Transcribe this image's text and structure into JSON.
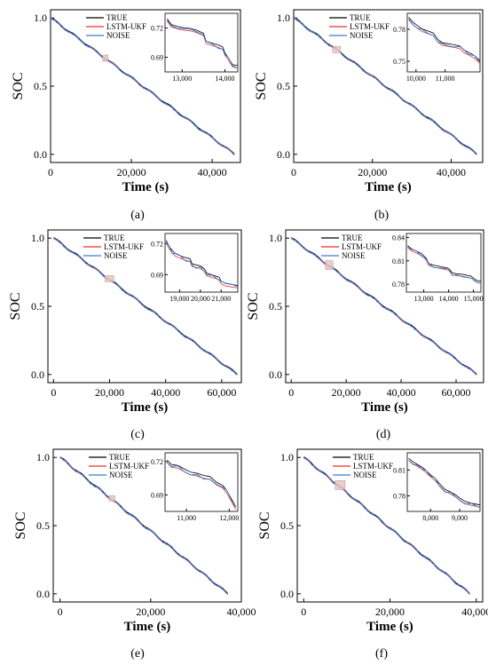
{
  "legend": [
    "TRUE",
    "LSTM-UKF",
    "NOISE"
  ],
  "colors": {
    "TRUE": "#000000",
    "LSTM-UKF": "#e8332a",
    "NOISE": "#3d7cd0",
    "zoom_box": "#e6bfbf"
  },
  "chart_data": [
    {
      "type": "line",
      "panel_label": "(a)",
      "xlabel": "Time (s)",
      "ylabel": "SOC",
      "xlim": [
        0,
        47000
      ],
      "ylim": [
        -0.06,
        1.06
      ],
      "xticks": [
        0,
        20000,
        40000
      ],
      "xtick_labels": [
        "0",
        "20,000",
        "40,000"
      ],
      "yticks": [
        0.0,
        0.5,
        1.0
      ],
      "ytick_labels": [
        "0.0",
        "0.5",
        "1.0"
      ],
      "legend": [
        "TRUE",
        "LSTM-UKF",
        "NOISE"
      ],
      "series_start": [
        0,
        1.0
      ],
      "series_end": [
        45500,
        0.0
      ],
      "zoom_region": {
        "x": [
          12900,
          14200
        ],
        "y": [
          0.682,
          0.728
        ]
      },
      "inset": {
        "xlim": [
          12600,
          14300
        ],
        "ylim": [
          0.675,
          0.735
        ],
        "xticks": [
          13000,
          14000
        ],
        "xtick_labels": [
          "13,000",
          "14,000"
        ],
        "yticks": [
          0.69,
          0.72
        ],
        "ytick_labels": [
          "0.69",
          "0.72"
        ],
        "points": [
          [
            12650,
            0.728
          ],
          [
            12750,
            0.722
          ],
          [
            12900,
            0.72
          ],
          [
            13000,
            0.719
          ],
          [
            13200,
            0.718
          ],
          [
            13350,
            0.716
          ],
          [
            13500,
            0.713
          ],
          [
            13560,
            0.705
          ],
          [
            13700,
            0.703
          ],
          [
            13850,
            0.701
          ],
          [
            13950,
            0.699
          ],
          [
            14000,
            0.693
          ],
          [
            14080,
            0.688
          ],
          [
            14180,
            0.681
          ],
          [
            14300,
            0.68
          ]
        ]
      }
    },
    {
      "type": "line",
      "panel_label": "(b)",
      "xlabel": "Time (s)",
      "ylabel": "SOC",
      "xlim": [
        0,
        48000
      ],
      "ylim": [
        -0.06,
        1.06
      ],
      "xticks": [
        0,
        20000,
        40000
      ],
      "xtick_labels": [
        "0",
        "20,000",
        "40,000"
      ],
      "yticks": [
        0.0,
        0.5,
        1.0
      ],
      "ytick_labels": [
        "0.0",
        "0.5",
        "1.0"
      ],
      "legend": [
        "TRUE",
        "LSTM-UKF",
        "NOISE"
      ],
      "series_start": [
        0,
        1.0
      ],
      "series_end": [
        46500,
        0.0
      ],
      "zoom_region": {
        "x": [
          9900,
          11900
        ],
        "y": [
          0.745,
          0.79
        ]
      },
      "inset": {
        "xlim": [
          9700,
          12200
        ],
        "ylim": [
          0.74,
          0.795
        ],
        "xticks": [
          10000,
          11000
        ],
        "xtick_labels": [
          "10,000",
          "11,000"
        ],
        "yticks": [
          0.75,
          0.78
        ],
        "ytick_labels": [
          "0.75",
          "0.78"
        ],
        "points": [
          [
            9750,
            0.79
          ],
          [
            9900,
            0.785
          ],
          [
            10050,
            0.782
          ],
          [
            10200,
            0.779
          ],
          [
            10400,
            0.777
          ],
          [
            10600,
            0.775
          ],
          [
            10750,
            0.769
          ],
          [
            10900,
            0.766
          ],
          [
            11100,
            0.765
          ],
          [
            11300,
            0.764
          ],
          [
            11500,
            0.763
          ],
          [
            11650,
            0.759
          ],
          [
            11800,
            0.757
          ],
          [
            12000,
            0.754
          ],
          [
            12200,
            0.749
          ]
        ]
      }
    },
    {
      "type": "line",
      "panel_label": "(c)",
      "xlabel": "Time (s)",
      "ylabel": "SOC",
      "xlim": [
        -2000,
        67000
      ],
      "ylim": [
        -0.06,
        1.06
      ],
      "xticks": [
        0,
        20000,
        40000,
        60000
      ],
      "xtick_labels": [
        "0",
        "20,000",
        "40,000",
        "60,000"
      ],
      "yticks": [
        0.0,
        0.5,
        1.0
      ],
      "ytick_labels": [
        "0.0",
        "0.5",
        "1.0"
      ],
      "legend": [
        "TRUE",
        "LSTM-UKF",
        "NOISE"
      ],
      "series_start": [
        0,
        1.0
      ],
      "series_end": [
        65500,
        0.0
      ],
      "zoom_region": {
        "x": [
          18400,
          21500
        ],
        "y": [
          0.68,
          0.725
        ]
      },
      "inset": {
        "xlim": [
          18300,
          21800
        ],
        "ylim": [
          0.673,
          0.73
        ],
        "xticks": [
          19000,
          20000,
          21000
        ],
        "xtick_labels": [
          "19,000",
          "20,000",
          "21,000"
        ],
        "yticks": [
          0.69,
          0.72
        ],
        "ytick_labels": [
          "0.69",
          "0.72"
        ],
        "points": [
          [
            18350,
            0.722
          ],
          [
            18500,
            0.716
          ],
          [
            18650,
            0.712
          ],
          [
            18800,
            0.709
          ],
          [
            19000,
            0.707
          ],
          [
            19300,
            0.705
          ],
          [
            19500,
            0.704
          ],
          [
            19600,
            0.699
          ],
          [
            19800,
            0.698
          ],
          [
            20000,
            0.697
          ],
          [
            20200,
            0.694
          ],
          [
            20300,
            0.69
          ],
          [
            20600,
            0.688
          ],
          [
            20900,
            0.686
          ],
          [
            21000,
            0.682
          ],
          [
            21200,
            0.68
          ],
          [
            21500,
            0.679
          ],
          [
            21800,
            0.678
          ]
        ]
      }
    },
    {
      "type": "line",
      "panel_label": "(d)",
      "xlabel": "Time (s)",
      "ylabel": "SOC",
      "xlim": [
        -2000,
        70000
      ],
      "ylim": [
        -0.06,
        1.06
      ],
      "xticks": [
        0,
        20000,
        40000,
        60000
      ],
      "xtick_labels": [
        "0",
        "20,000",
        "40,000",
        "60,000"
      ],
      "yticks": [
        0.0,
        0.5,
        1.0
      ],
      "ytick_labels": [
        "0.0",
        "0.5",
        "1.0"
      ],
      "legend": [
        "TRUE",
        "LSTM-UKF",
        "NOISE"
      ],
      "series_start": [
        0,
        1.0
      ],
      "series_end": [
        67500,
        0.0
      ],
      "zoom_region": {
        "x": [
          12500,
          15200
        ],
        "y": [
          0.77,
          0.835
        ]
      },
      "inset": {
        "xlim": [
          12300,
          15300
        ],
        "ylim": [
          0.77,
          0.845
        ],
        "xticks": [
          13000,
          14000,
          15000
        ],
        "xtick_labels": [
          "13,000",
          "14,000",
          "15,000"
        ],
        "yticks": [
          0.78,
          0.81,
          0.84
        ],
        "ytick_labels": [
          "0.78",
          "0.81",
          "0.84"
        ],
        "points": [
          [
            12350,
            0.828
          ],
          [
            12500,
            0.824
          ],
          [
            12700,
            0.821
          ],
          [
            12900,
            0.818
          ],
          [
            13100,
            0.812
          ],
          [
            13200,
            0.805
          ],
          [
            13400,
            0.803
          ],
          [
            13700,
            0.801
          ],
          [
            14000,
            0.799
          ],
          [
            14150,
            0.793
          ],
          [
            14300,
            0.792
          ],
          [
            14600,
            0.791
          ],
          [
            14900,
            0.789
          ],
          [
            15100,
            0.784
          ],
          [
            15300,
            0.782
          ]
        ]
      }
    },
    {
      "type": "line",
      "panel_label": "(e)",
      "xlabel": "Time (s)",
      "ylabel": "SOC",
      "xlim": [
        -1500,
        40000
      ],
      "ylim": [
        -0.06,
        1.06
      ],
      "xticks": [
        0,
        20000,
        40000
      ],
      "xtick_labels": [
        "0",
        "20,000",
        "40,000"
      ],
      "yticks": [
        0.0,
        0.5,
        1.0
      ],
      "ytick_labels": [
        "0.0",
        "0.5",
        "1.0"
      ],
      "legend": [
        "TRUE",
        "LSTM-UKF",
        "NOISE"
      ],
      "series_start": [
        0,
        1.0
      ],
      "series_end": [
        37000,
        0.0
      ],
      "zoom_region": {
        "x": [
          10800,
          12100
        ],
        "y": [
          0.68,
          0.72
        ]
      },
      "inset": {
        "xlim": [
          10500,
          12200
        ],
        "ylim": [
          0.675,
          0.728
        ],
        "xticks": [
          11000,
          12000
        ],
        "xtick_labels": [
          "11,000",
          "12,000"
        ],
        "yticks": [
          0.69,
          0.72
        ],
        "ytick_labels": [
          "0.69",
          "0.72"
        ],
        "points": [
          [
            10550,
            0.72
          ],
          [
            10650,
            0.716
          ],
          [
            10800,
            0.715
          ],
          [
            10950,
            0.712
          ],
          [
            11100,
            0.709
          ],
          [
            11250,
            0.708
          ],
          [
            11400,
            0.706
          ],
          [
            11550,
            0.705
          ],
          [
            11700,
            0.7
          ],
          [
            11850,
            0.697
          ],
          [
            11950,
            0.692
          ],
          [
            12050,
            0.685
          ],
          [
            12150,
            0.678
          ]
        ]
      }
    },
    {
      "type": "line",
      "panel_label": "(f)",
      "xlabel": "Time (s)",
      "ylabel": "SOC",
      "xlim": [
        -1500,
        41500
      ],
      "ylim": [
        -0.06,
        1.06
      ],
      "xticks": [
        0,
        20000,
        40000
      ],
      "xtick_labels": [
        "0",
        "20,000",
        "40,000"
      ],
      "yticks": [
        0.0,
        0.5,
        1.0
      ],
      "ytick_labels": [
        "0.0",
        "0.5",
        "1.0"
      ],
      "legend": [
        "TRUE",
        "LSTM-UKF",
        "NOISE"
      ],
      "series_start": [
        0,
        1.0
      ],
      "series_end": [
        38500,
        0.0
      ],
      "zoom_region": {
        "x": [
          7300,
          9600
        ],
        "y": [
          0.765,
          0.83
        ]
      },
      "inset": {
        "xlim": [
          7200,
          9700
        ],
        "ylim": [
          0.762,
          0.83
        ],
        "xticks": [
          8000,
          9000
        ],
        "xtick_labels": [
          "8,000",
          "9,000"
        ],
        "yticks": [
          0.78,
          0.81
        ],
        "ytick_labels": [
          "0.78",
          "0.81"
        ],
        "points": [
          [
            7250,
            0.822
          ],
          [
            7400,
            0.818
          ],
          [
            7550,
            0.815
          ],
          [
            7700,
            0.812
          ],
          [
            7850,
            0.808
          ],
          [
            8000,
            0.803
          ],
          [
            8150,
            0.799
          ],
          [
            8300,
            0.793
          ],
          [
            8500,
            0.786
          ],
          [
            8700,
            0.783
          ],
          [
            8850,
            0.78
          ],
          [
            9000,
            0.776
          ],
          [
            9200,
            0.772
          ],
          [
            9400,
            0.77
          ],
          [
            9700,
            0.768
          ]
        ]
      }
    }
  ]
}
